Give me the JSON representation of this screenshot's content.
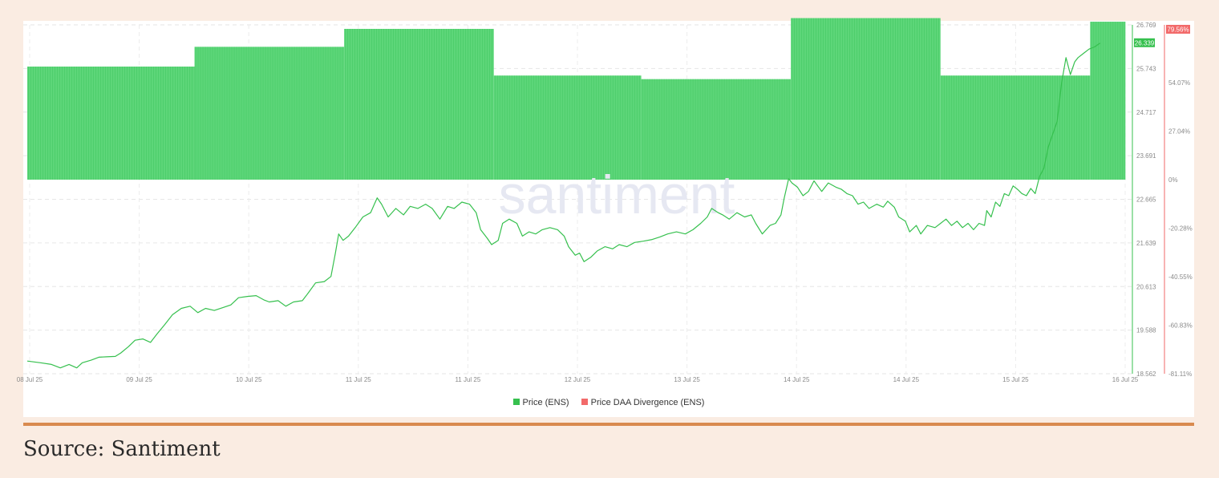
{
  "source_caption": "Source: Santiment",
  "watermark": "santiment",
  "chart_data": {
    "type": "line+bar",
    "x_tick_labels": [
      "08 Jul 25",
      "09 Jul 25",
      "10 Jul 25",
      "11 Jul 25",
      "11 Jul 25",
      "12 Jul 25",
      "13 Jul 25",
      "14 Jul 25",
      "14 Jul 25",
      "15 Jul 25",
      "16 Jul 25"
    ],
    "x_range": [
      0,
      10
    ],
    "y_left_ticks": [
      "26.769",
      "25.743",
      "24.717",
      "23.691",
      "22.665",
      "21.639",
      "20.613",
      "19.588",
      "18.562"
    ],
    "y_left_range": [
      18.562,
      26.769
    ],
    "y_right_ticks": [
      "54.07%",
      "27.04%",
      "0%",
      "-20.28%",
      "-40.55%",
      "-60.83%",
      "-81.11%"
    ],
    "y_right_values": [
      54.07,
      27.04,
      0,
      -20.28,
      -40.55,
      -60.83,
      -81.11
    ],
    "current_price_label": "26.339",
    "current_price": 26.339,
    "current_divergence_label": "79.56%",
    "grid": true,
    "legend_position": "bottom-center",
    "colors": {
      "price": "#36c04e",
      "divergence": "#f26a6a",
      "divergence_bars": "#5dd679"
    },
    "series": [
      {
        "name": "Price (ENS)",
        "axis": "left",
        "points": [
          [
            0.0,
            18.86
          ],
          [
            0.12,
            18.82
          ],
          [
            0.22,
            18.78
          ],
          [
            0.3,
            18.7
          ],
          [
            0.38,
            18.78
          ],
          [
            0.45,
            18.7
          ],
          [
            0.5,
            18.82
          ],
          [
            0.58,
            18.88
          ],
          [
            0.65,
            18.95
          ],
          [
            0.72,
            18.96
          ],
          [
            0.8,
            18.97
          ],
          [
            0.85,
            19.05
          ],
          [
            0.92,
            19.2
          ],
          [
            0.98,
            19.35
          ],
          [
            1.05,
            19.38
          ],
          [
            1.12,
            19.3
          ],
          [
            1.18,
            19.5
          ],
          [
            1.25,
            19.72
          ],
          [
            1.32,
            19.95
          ],
          [
            1.4,
            20.1
          ],
          [
            1.48,
            20.15
          ],
          [
            1.55,
            20.0
          ],
          [
            1.62,
            20.1
          ],
          [
            1.7,
            20.05
          ],
          [
            1.78,
            20.12
          ],
          [
            1.85,
            20.18
          ],
          [
            1.92,
            20.35
          ],
          [
            2.0,
            20.38
          ],
          [
            2.08,
            20.4
          ],
          [
            2.15,
            20.3
          ],
          [
            2.2,
            20.25
          ],
          [
            2.28,
            20.28
          ],
          [
            2.35,
            20.15
          ],
          [
            2.42,
            20.25
          ],
          [
            2.5,
            20.28
          ],
          [
            2.55,
            20.45
          ],
          [
            2.62,
            20.7
          ],
          [
            2.7,
            20.73
          ],
          [
            2.76,
            20.85
          ],
          [
            2.8,
            21.4
          ],
          [
            2.83,
            21.85
          ],
          [
            2.87,
            21.7
          ],
          [
            2.92,
            21.8
          ],
          [
            2.98,
            22.0
          ],
          [
            3.05,
            22.25
          ],
          [
            3.12,
            22.35
          ],
          [
            3.18,
            22.7
          ],
          [
            3.22,
            22.55
          ],
          [
            3.28,
            22.25
          ],
          [
            3.35,
            22.45
          ],
          [
            3.42,
            22.3
          ],
          [
            3.48,
            22.5
          ],
          [
            3.55,
            22.45
          ],
          [
            3.62,
            22.55
          ],
          [
            3.68,
            22.45
          ],
          [
            3.75,
            22.2
          ],
          [
            3.82,
            22.5
          ],
          [
            3.88,
            22.45
          ],
          [
            3.95,
            22.6
          ],
          [
            4.02,
            22.55
          ],
          [
            4.08,
            22.35
          ],
          [
            4.12,
            21.95
          ],
          [
            4.18,
            21.75
          ],
          [
            4.22,
            21.6
          ],
          [
            4.28,
            21.7
          ],
          [
            4.32,
            22.1
          ],
          [
            4.38,
            22.2
          ],
          [
            4.45,
            22.1
          ],
          [
            4.5,
            21.8
          ],
          [
            4.56,
            21.9
          ],
          [
            4.62,
            21.85
          ],
          [
            4.68,
            21.95
          ],
          [
            4.75,
            22.0
          ],
          [
            4.82,
            21.95
          ],
          [
            4.88,
            21.8
          ],
          [
            4.92,
            21.55
          ],
          [
            4.98,
            21.35
          ],
          [
            5.02,
            21.4
          ],
          [
            5.06,
            21.2
          ],
          [
            5.12,
            21.3
          ],
          [
            5.18,
            21.45
          ],
          [
            5.25,
            21.55
          ],
          [
            5.32,
            21.5
          ],
          [
            5.38,
            21.6
          ],
          [
            5.45,
            21.55
          ],
          [
            5.52,
            21.65
          ],
          [
            5.6,
            21.68
          ],
          [
            5.68,
            21.72
          ],
          [
            5.75,
            21.78
          ],
          [
            5.82,
            21.85
          ],
          [
            5.9,
            21.9
          ],
          [
            5.98,
            21.85
          ],
          [
            6.05,
            21.95
          ],
          [
            6.12,
            22.1
          ],
          [
            6.18,
            22.25
          ],
          [
            6.22,
            22.45
          ],
          [
            6.28,
            22.35
          ],
          [
            6.32,
            22.3
          ],
          [
            6.38,
            22.2
          ],
          [
            6.45,
            22.35
          ],
          [
            6.52,
            22.25
          ],
          [
            6.58,
            22.3
          ],
          [
            6.62,
            22.1
          ],
          [
            6.68,
            21.85
          ],
          [
            6.75,
            22.05
          ],
          [
            6.8,
            22.1
          ],
          [
            6.85,
            22.3
          ],
          [
            6.88,
            22.7
          ],
          [
            6.92,
            23.15
          ],
          [
            6.95,
            23.05
          ],
          [
            7.0,
            22.95
          ],
          [
            7.05,
            22.75
          ],
          [
            7.1,
            22.85
          ],
          [
            7.15,
            23.1
          ],
          [
            7.22,
            22.85
          ],
          [
            7.28,
            23.05
          ],
          [
            7.35,
            22.95
          ],
          [
            7.4,
            22.9
          ],
          [
            7.45,
            22.8
          ],
          [
            7.5,
            22.75
          ],
          [
            7.55,
            22.55
          ],
          [
            7.6,
            22.6
          ],
          [
            7.65,
            22.45
          ],
          [
            7.72,
            22.55
          ],
          [
            7.78,
            22.48
          ],
          [
            7.82,
            22.62
          ],
          [
            7.88,
            22.48
          ],
          [
            7.92,
            22.25
          ],
          [
            7.98,
            22.15
          ],
          [
            8.02,
            21.9
          ],
          [
            8.08,
            22.05
          ],
          [
            8.12,
            21.85
          ],
          [
            8.18,
            22.05
          ],
          [
            8.25,
            22.0
          ],
          [
            8.3,
            22.1
          ],
          [
            8.35,
            22.2
          ],
          [
            8.4,
            22.05
          ],
          [
            8.45,
            22.15
          ],
          [
            8.5,
            22.0
          ],
          [
            8.55,
            22.1
          ],
          [
            8.6,
            21.95
          ],
          [
            8.65,
            22.1
          ],
          [
            8.7,
            22.05
          ],
          [
            8.72,
            22.4
          ],
          [
            8.76,
            22.25
          ],
          [
            8.8,
            22.6
          ],
          [
            8.84,
            22.5
          ],
          [
            8.88,
            22.8
          ],
          [
            8.92,
            22.75
          ],
          [
            8.96,
            22.98
          ],
          [
            9.0,
            22.9
          ],
          [
            9.04,
            22.8
          ],
          [
            9.08,
            22.75
          ],
          [
            9.12,
            22.92
          ],
          [
            9.16,
            22.8
          ],
          [
            9.2,
            23.2
          ],
          [
            9.24,
            23.4
          ],
          [
            9.28,
            23.9
          ],
          [
            9.32,
            24.2
          ],
          [
            9.36,
            24.5
          ],
          [
            9.4,
            25.4
          ],
          [
            9.44,
            26.0
          ],
          [
            9.48,
            25.6
          ],
          [
            9.52,
            25.9
          ],
          [
            9.55,
            26.0
          ],
          [
            9.6,
            26.1
          ],
          [
            9.65,
            26.2
          ],
          [
            9.7,
            26.25
          ],
          [
            9.75,
            26.339
          ]
        ]
      },
      {
        "name": "Price DAA Divergence (ENS)",
        "axis": "right",
        "segments": [
          {
            "x0": 0.0,
            "x1": 1.52,
            "value": 63
          },
          {
            "x0": 1.52,
            "x1": 2.88,
            "value": 74
          },
          {
            "x0": 2.88,
            "x1": 4.24,
            "value": 84
          },
          {
            "x0": 4.24,
            "x1": 5.58,
            "value": 58
          },
          {
            "x0": 5.58,
            "x1": 6.94,
            "value": 56
          },
          {
            "x0": 6.94,
            "x1": 8.3,
            "value": 90
          },
          {
            "x0": 8.3,
            "x1": 9.66,
            "value": 58
          },
          {
            "x0": 9.66,
            "x1": 9.98,
            "value": 88
          }
        ]
      }
    ]
  }
}
